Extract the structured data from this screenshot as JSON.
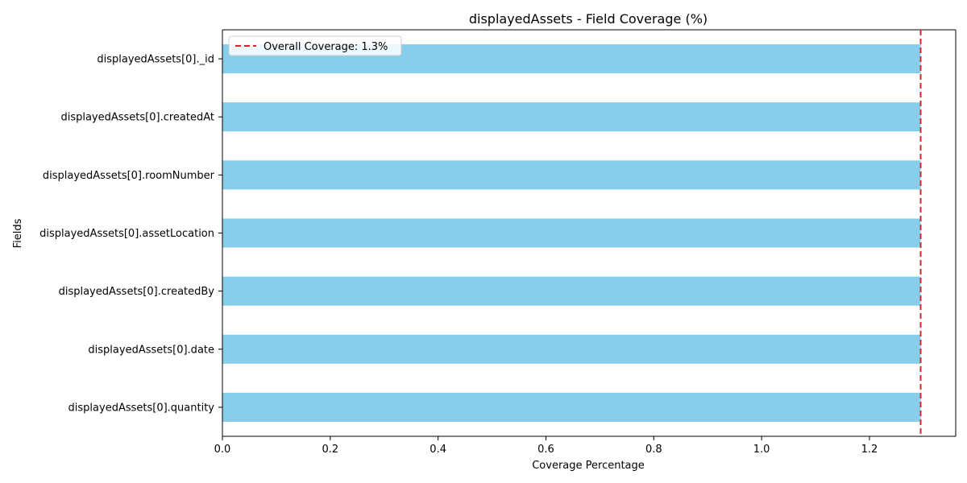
{
  "chart_data": {
    "type": "bar",
    "orientation": "horizontal",
    "title": "displayedAssets - Field Coverage (%)",
    "xlabel": "Coverage Percentage",
    "ylabel": "Fields",
    "categories": [
      "displayedAssets[0]._id",
      "displayedAssets[0].createdAt",
      "displayedAssets[0].roomNumber",
      "displayedAssets[0].assetLocation",
      "displayedAssets[0].createdBy",
      "displayedAssets[0].date",
      "displayedAssets[0].quantity"
    ],
    "values": [
      1.295,
      1.295,
      1.295,
      1.295,
      1.295,
      1.295,
      1.295
    ],
    "xlim": [
      0,
      1.36
    ],
    "xticks": [
      "0.0",
      "0.2",
      "0.4",
      "0.6",
      "0.8",
      "1.0",
      "1.2"
    ],
    "xtick_values": [
      0,
      0.2,
      0.4,
      0.6,
      0.8,
      1.0,
      1.2
    ],
    "bar_color": "#87CEEB",
    "reference_line": {
      "value": 1.295,
      "label": "Overall Coverage: 1.3%",
      "color": "#d62728",
      "style": "dashed"
    },
    "legend": {
      "position": "top-left",
      "entries": [
        "Overall Coverage: 1.3%"
      ]
    },
    "grid": false
  }
}
